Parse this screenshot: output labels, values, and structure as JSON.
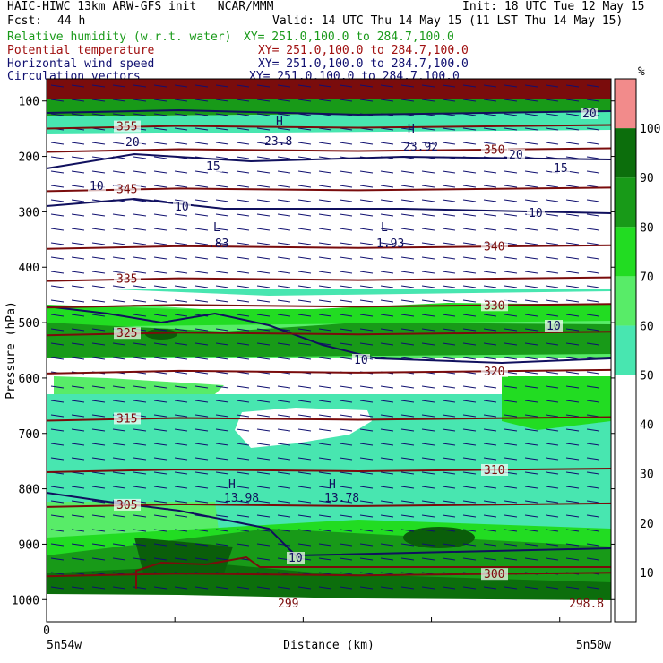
{
  "header": {
    "line1_left": "HAIC-HIWC 13km ARW-GFS init   NCAR/MMM",
    "line1_right": "Init: 18 UTC Tue 12 May 15",
    "fcst_label": "Fcst:",
    "fcst_value": "44 h",
    "valid": "Valid: 14 UTC Thu 14 May 15 (11 LST Thu 14 May 15)"
  },
  "fields": [
    {
      "name": "Relative humidity (w.r.t. water)",
      "xy": "XY= 251.0,100.0 to 284.7,100.0",
      "color": "#1a9a1a"
    },
    {
      "name": "Potential temperature",
      "xy": "XY= 251.0,100.0 to 284.7,100.0",
      "color": "#a01010"
    },
    {
      "name": "Horizontal wind speed",
      "xy": "XY= 251.0,100.0 to 284.7,100.0",
      "color": "#101070"
    },
    {
      "name": "Circulation vectors",
      "xy": "XY= 251.0,100.0 to 284.7,100.0",
      "color": "#101070"
    }
  ],
  "chart_data": {
    "type": "cross-section",
    "ylabel": "Pressure (hPa)",
    "xlabel": "Distance (km)",
    "x_origin_label": "0",
    "x_left_label": "5n54w",
    "x_right_label": "5n50w",
    "y_ticks": [
      100,
      200,
      300,
      400,
      500,
      600,
      700,
      800,
      900,
      1000
    ],
    "ylim": [
      1040,
      60
    ],
    "colorbar": {
      "unit": "%",
      "ticks": [
        10,
        20,
        30,
        40,
        50,
        60,
        70,
        80,
        90,
        100
      ],
      "bands": [
        {
          "from": 0,
          "to": 50,
          "color": "#ffffff"
        },
        {
          "from": 50,
          "to": 60,
          "color": "#48e6b0"
        },
        {
          "from": 60,
          "to": 70,
          "color": "#58ec68"
        },
        {
          "from": 70,
          "to": 80,
          "color": "#22dc22"
        },
        {
          "from": 80,
          "to": 90,
          "color": "#189a18"
        },
        {
          "from": 90,
          "to": 100,
          "color": "#0c6e0c"
        },
        {
          "from": 100,
          "to": 110,
          "color": "#f28b8b"
        }
      ]
    },
    "theta_isentropes": [
      {
        "label": "355",
        "p": 145
      },
      {
        "label": "350",
        "p": 187
      },
      {
        "label": "345",
        "p": 258
      },
      {
        "label": "340",
        "p": 362
      },
      {
        "label": "335",
        "p": 420
      },
      {
        "label": "330",
        "p": 468
      },
      {
        "label": "325",
        "p": 518
      },
      {
        "label": "320",
        "p": 587
      },
      {
        "label": "315",
        "p": 672
      },
      {
        "label": "310",
        "p": 765
      },
      {
        "label": "305",
        "p": 828
      },
      {
        "label": "300",
        "p": 953
      }
    ],
    "theta_extra_labels": [
      "299",
      "298.8"
    ],
    "wind_speed_labels": [
      "20",
      "15",
      "10"
    ],
    "extrema": [
      {
        "type": "H",
        "value": "23.8"
      },
      {
        "type": "H",
        "value": "23.92"
      },
      {
        "type": "L",
        "value": ".83"
      },
      {
        "type": "L",
        "value": "1.93"
      },
      {
        "type": "H",
        "value": "13.98"
      },
      {
        "type": "H",
        "value": "13.78"
      }
    ]
  }
}
